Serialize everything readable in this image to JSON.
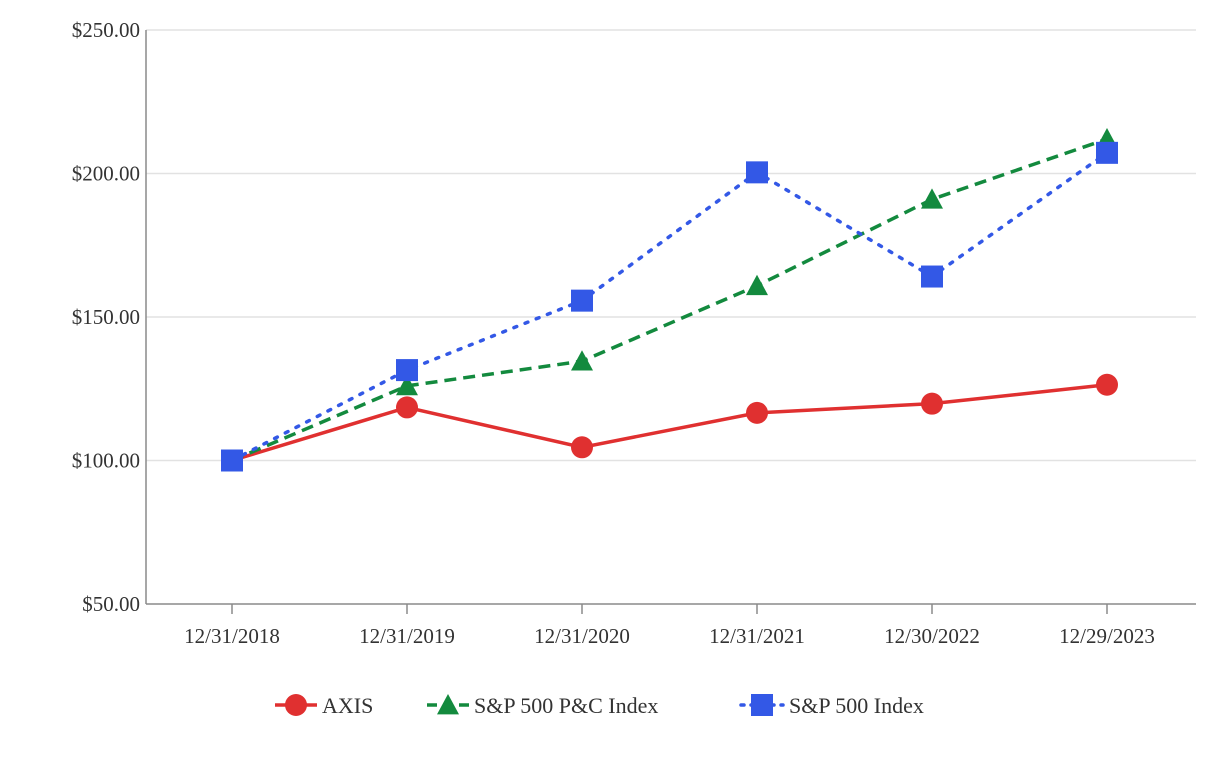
{
  "chart_data": {
    "type": "line",
    "categories": [
      "12/31/2018",
      "12/31/2019",
      "12/31/2020",
      "12/31/2021",
      "12/30/2022",
      "12/29/2023"
    ],
    "series": [
      {
        "name": "AXIS",
        "values": [
          100.0,
          118.5,
          104.6,
          116.6,
          119.8,
          126.4
        ],
        "color": "#e03030",
        "line_style": "solid",
        "marker": "circle"
      },
      {
        "name": "S&P 500 P&C Index",
        "values": [
          100.0,
          126.0,
          134.6,
          160.9,
          191.0,
          212.0
        ],
        "color": "#138a3e",
        "line_style": "dashed",
        "marker": "triangle"
      },
      {
        "name": "S&P 500 Index",
        "values": [
          100.0,
          131.5,
          155.7,
          200.4,
          164.1,
          207.2
        ],
        "color": "#3358e6",
        "line_style": "dotted",
        "marker": "square"
      }
    ],
    "ylim": [
      50,
      250
    ],
    "yticks": [
      50,
      100,
      150,
      200,
      250
    ],
    "ytick_labels": [
      "$50.00",
      "$100.00",
      "$150.00",
      "$200.00",
      "$250.00"
    ],
    "title": "",
    "xlabel": "",
    "ylabel": "",
    "grid": "horizontal",
    "legend_position": "bottom-center"
  }
}
